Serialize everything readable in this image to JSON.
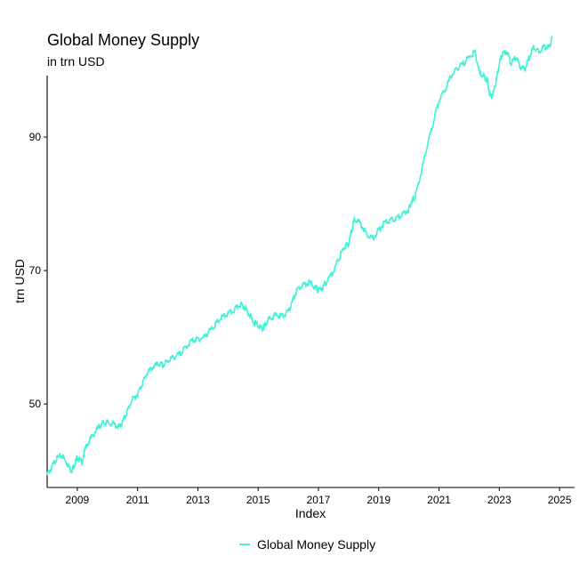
{
  "chart_data": {
    "type": "line",
    "title": "Global Money Supply",
    "subtitle": "in trn USD",
    "xlabel": "Index",
    "ylabel": "trn USD",
    "x_ticks": [
      "2009",
      "2011",
      "2013",
      "2015",
      "2017",
      "2019",
      "2021",
      "2023",
      "2025"
    ],
    "y_ticks": [
      "50",
      "70",
      "90"
    ],
    "xlim": [
      2008.0,
      2025.5
    ],
    "ylim": [
      37.5,
      99.2
    ],
    "grid": false,
    "legend_position": "bottom",
    "series": [
      {
        "name": "Global Money Supply",
        "color": "#40f2d6",
        "x": [
          2008.0,
          2008.15,
          2008.3,
          2008.5,
          2008.65,
          2008.8,
          2008.9,
          2009.0,
          2009.15,
          2009.3,
          2009.5,
          2009.7,
          2009.85,
          2010.0,
          2010.2,
          2010.4,
          2010.5,
          2010.65,
          2010.8,
          2011.0,
          2011.15,
          2011.3,
          2011.5,
          2011.7,
          2011.85,
          2012.0,
          2012.2,
          2012.4,
          2012.6,
          2012.8,
          2013.0,
          2013.2,
          2013.4,
          2013.6,
          2013.8,
          2014.0,
          2014.2,
          2014.4,
          2014.55,
          2014.7,
          2014.85,
          2015.0,
          2015.15,
          2015.25,
          2015.4,
          2015.6,
          2015.8,
          2016.0,
          2016.15,
          2016.3,
          2016.5,
          2016.7,
          2016.9,
          2017.0,
          2017.15,
          2017.3,
          2017.5,
          2017.7,
          2017.85,
          2018.0,
          2018.1,
          2018.2,
          2018.4,
          2018.6,
          2018.8,
          2019.0,
          2019.2,
          2019.4,
          2019.6,
          2019.8,
          2020.0,
          2020.1,
          2020.2,
          2020.4,
          2020.6,
          2020.8,
          2021.0,
          2021.2,
          2021.4,
          2021.6,
          2021.8,
          2022.0,
          2022.2,
          2022.35,
          2022.5,
          2022.6,
          2022.7,
          2022.8,
          2022.9,
          2023.0,
          2023.1,
          2023.25,
          2023.4,
          2023.55,
          2023.7,
          2023.85,
          2024.0,
          2024.15,
          2024.3,
          2024.5,
          2024.65,
          2024.75
        ],
        "y": [
          39.3,
          40.5,
          41.8,
          42.3,
          41.2,
          40.0,
          40.8,
          42.0,
          41.3,
          43.8,
          45.2,
          46.5,
          47.2,
          47.2,
          47.0,
          46.5,
          47.3,
          48.8,
          50.5,
          51.5,
          53.0,
          54.5,
          55.5,
          56.0,
          55.8,
          56.5,
          57.0,
          57.5,
          58.5,
          59.5,
          59.7,
          60.0,
          61.0,
          62.0,
          63.0,
          63.5,
          64.0,
          65.0,
          64.5,
          63.5,
          62.2,
          61.8,
          61.2,
          62.0,
          63.0,
          63.3,
          63.2,
          63.8,
          65.5,
          67.2,
          67.8,
          68.2,
          67.5,
          67.0,
          67.5,
          68.5,
          70.0,
          72.0,
          73.5,
          74.0,
          76.0,
          77.8,
          77.0,
          75.5,
          74.8,
          76.0,
          77.2,
          77.5,
          77.8,
          78.5,
          79.2,
          80.5,
          81.0,
          84.5,
          88.5,
          92.0,
          95.5,
          97.0,
          99.2,
          100.2,
          101.0,
          102.0,
          102.7,
          99.5,
          99.0,
          98.5,
          96.0,
          96.5,
          98.5,
          101.0,
          102.5,
          102.8,
          101.0,
          102.0,
          100.5,
          100.2,
          102.0,
          103.5,
          102.8,
          103.5,
          103.3,
          104.8
        ]
      }
    ]
  }
}
